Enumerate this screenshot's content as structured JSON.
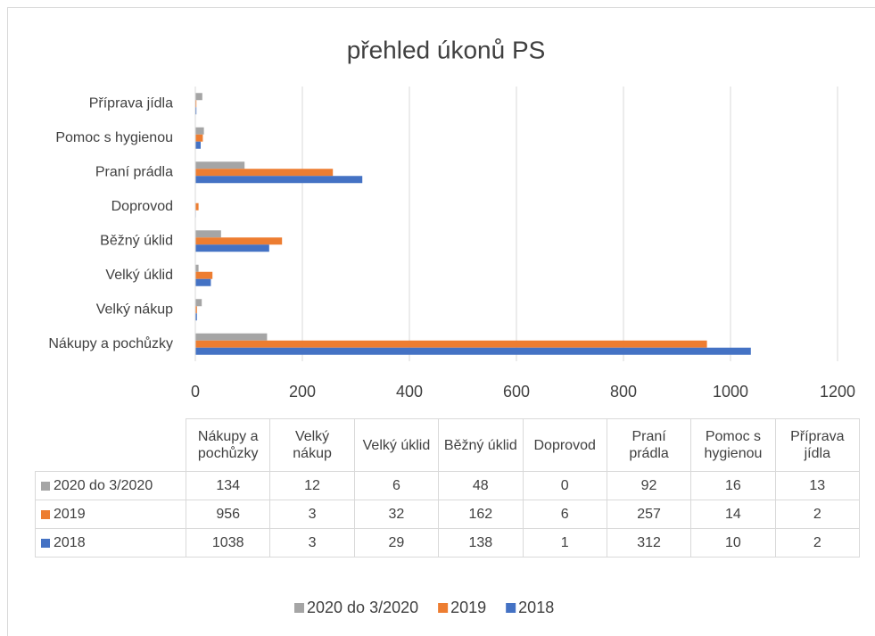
{
  "chart_data": {
    "type": "hbar",
    "title": "přehled úkonů PS",
    "categories": [
      "Nákupy a pochůzky",
      "Velký nákup",
      "Velký úklid",
      "Běžný úklid",
      "Doprovod",
      "Praní prádla",
      "Pomoc s hygienou",
      "Příprava jídla"
    ],
    "series": [
      {
        "name": "2020 do 3/2020",
        "color": "#a5a5a5",
        "values": [
          134,
          12,
          6,
          48,
          0,
          92,
          16,
          13
        ]
      },
      {
        "name": "2019",
        "color": "#ed7d31",
        "values": [
          956,
          3,
          32,
          162,
          6,
          257,
          14,
          2
        ]
      },
      {
        "name": "2018",
        "color": "#4472c4",
        "values": [
          1038,
          3,
          29,
          138,
          1,
          312,
          10,
          2
        ]
      }
    ],
    "xlim": [
      0,
      1200
    ],
    "xticks": [
      0,
      200,
      400,
      600,
      800,
      1000,
      1200
    ],
    "grid": true,
    "data_table": true,
    "legend": "bottom"
  }
}
